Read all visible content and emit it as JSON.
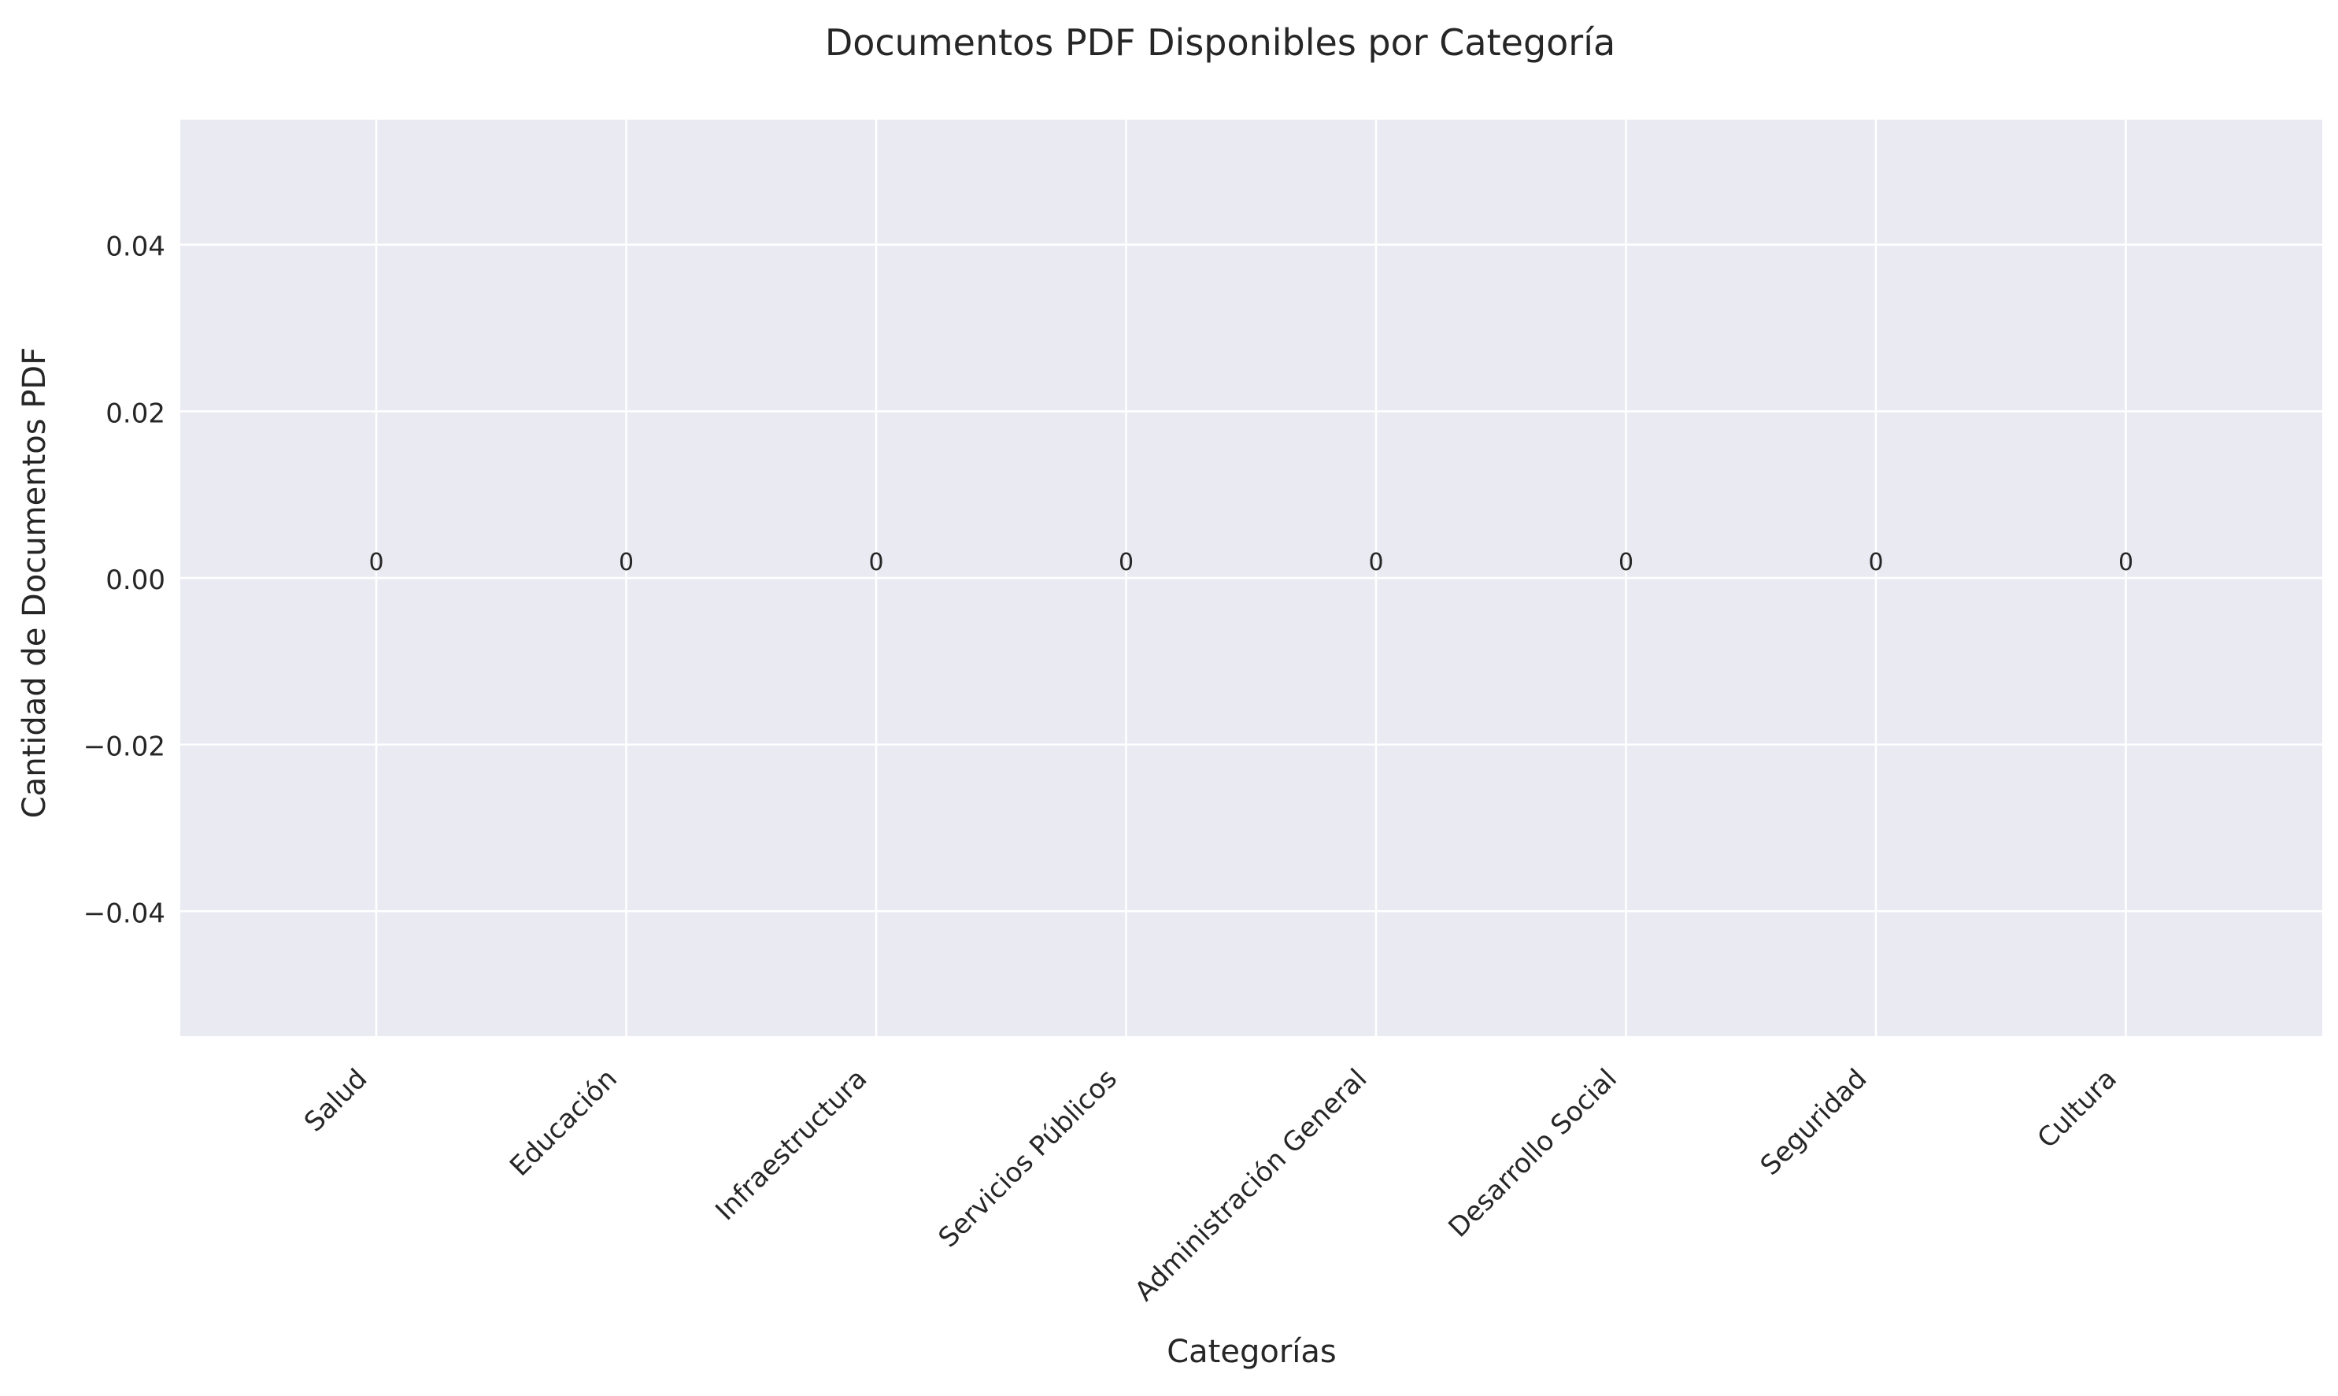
{
  "chart_data": {
    "type": "bar",
    "title": "Documentos PDF Disponibles por Categoría",
    "xlabel": "Categorías",
    "ylabel": "Cantidad de Documentos PDF",
    "categories": [
      "Salud",
      "Educación",
      "Infraestructura",
      "Servicios Públicos",
      "Administración General",
      "Desarrollo Social",
      "Seguridad",
      "Cultura"
    ],
    "values": [
      0,
      0,
      0,
      0,
      0,
      0,
      0,
      0
    ],
    "data_labels": [
      "0",
      "0",
      "0",
      "0",
      "0",
      "0",
      "0",
      "0"
    ],
    "ylim": [
      -0.055,
      0.055
    ],
    "yticks": [
      0.04,
      0.02,
      0.0,
      -0.02,
      -0.04
    ],
    "ytick_labels": [
      "0.04",
      "0.02",
      "0.00",
      "−0.02",
      "−0.04"
    ],
    "grid": true,
    "legend": "none",
    "colors": {
      "plot_background": "#EAEAF2",
      "grid": "#FFFFFF",
      "text": "#262626"
    }
  }
}
